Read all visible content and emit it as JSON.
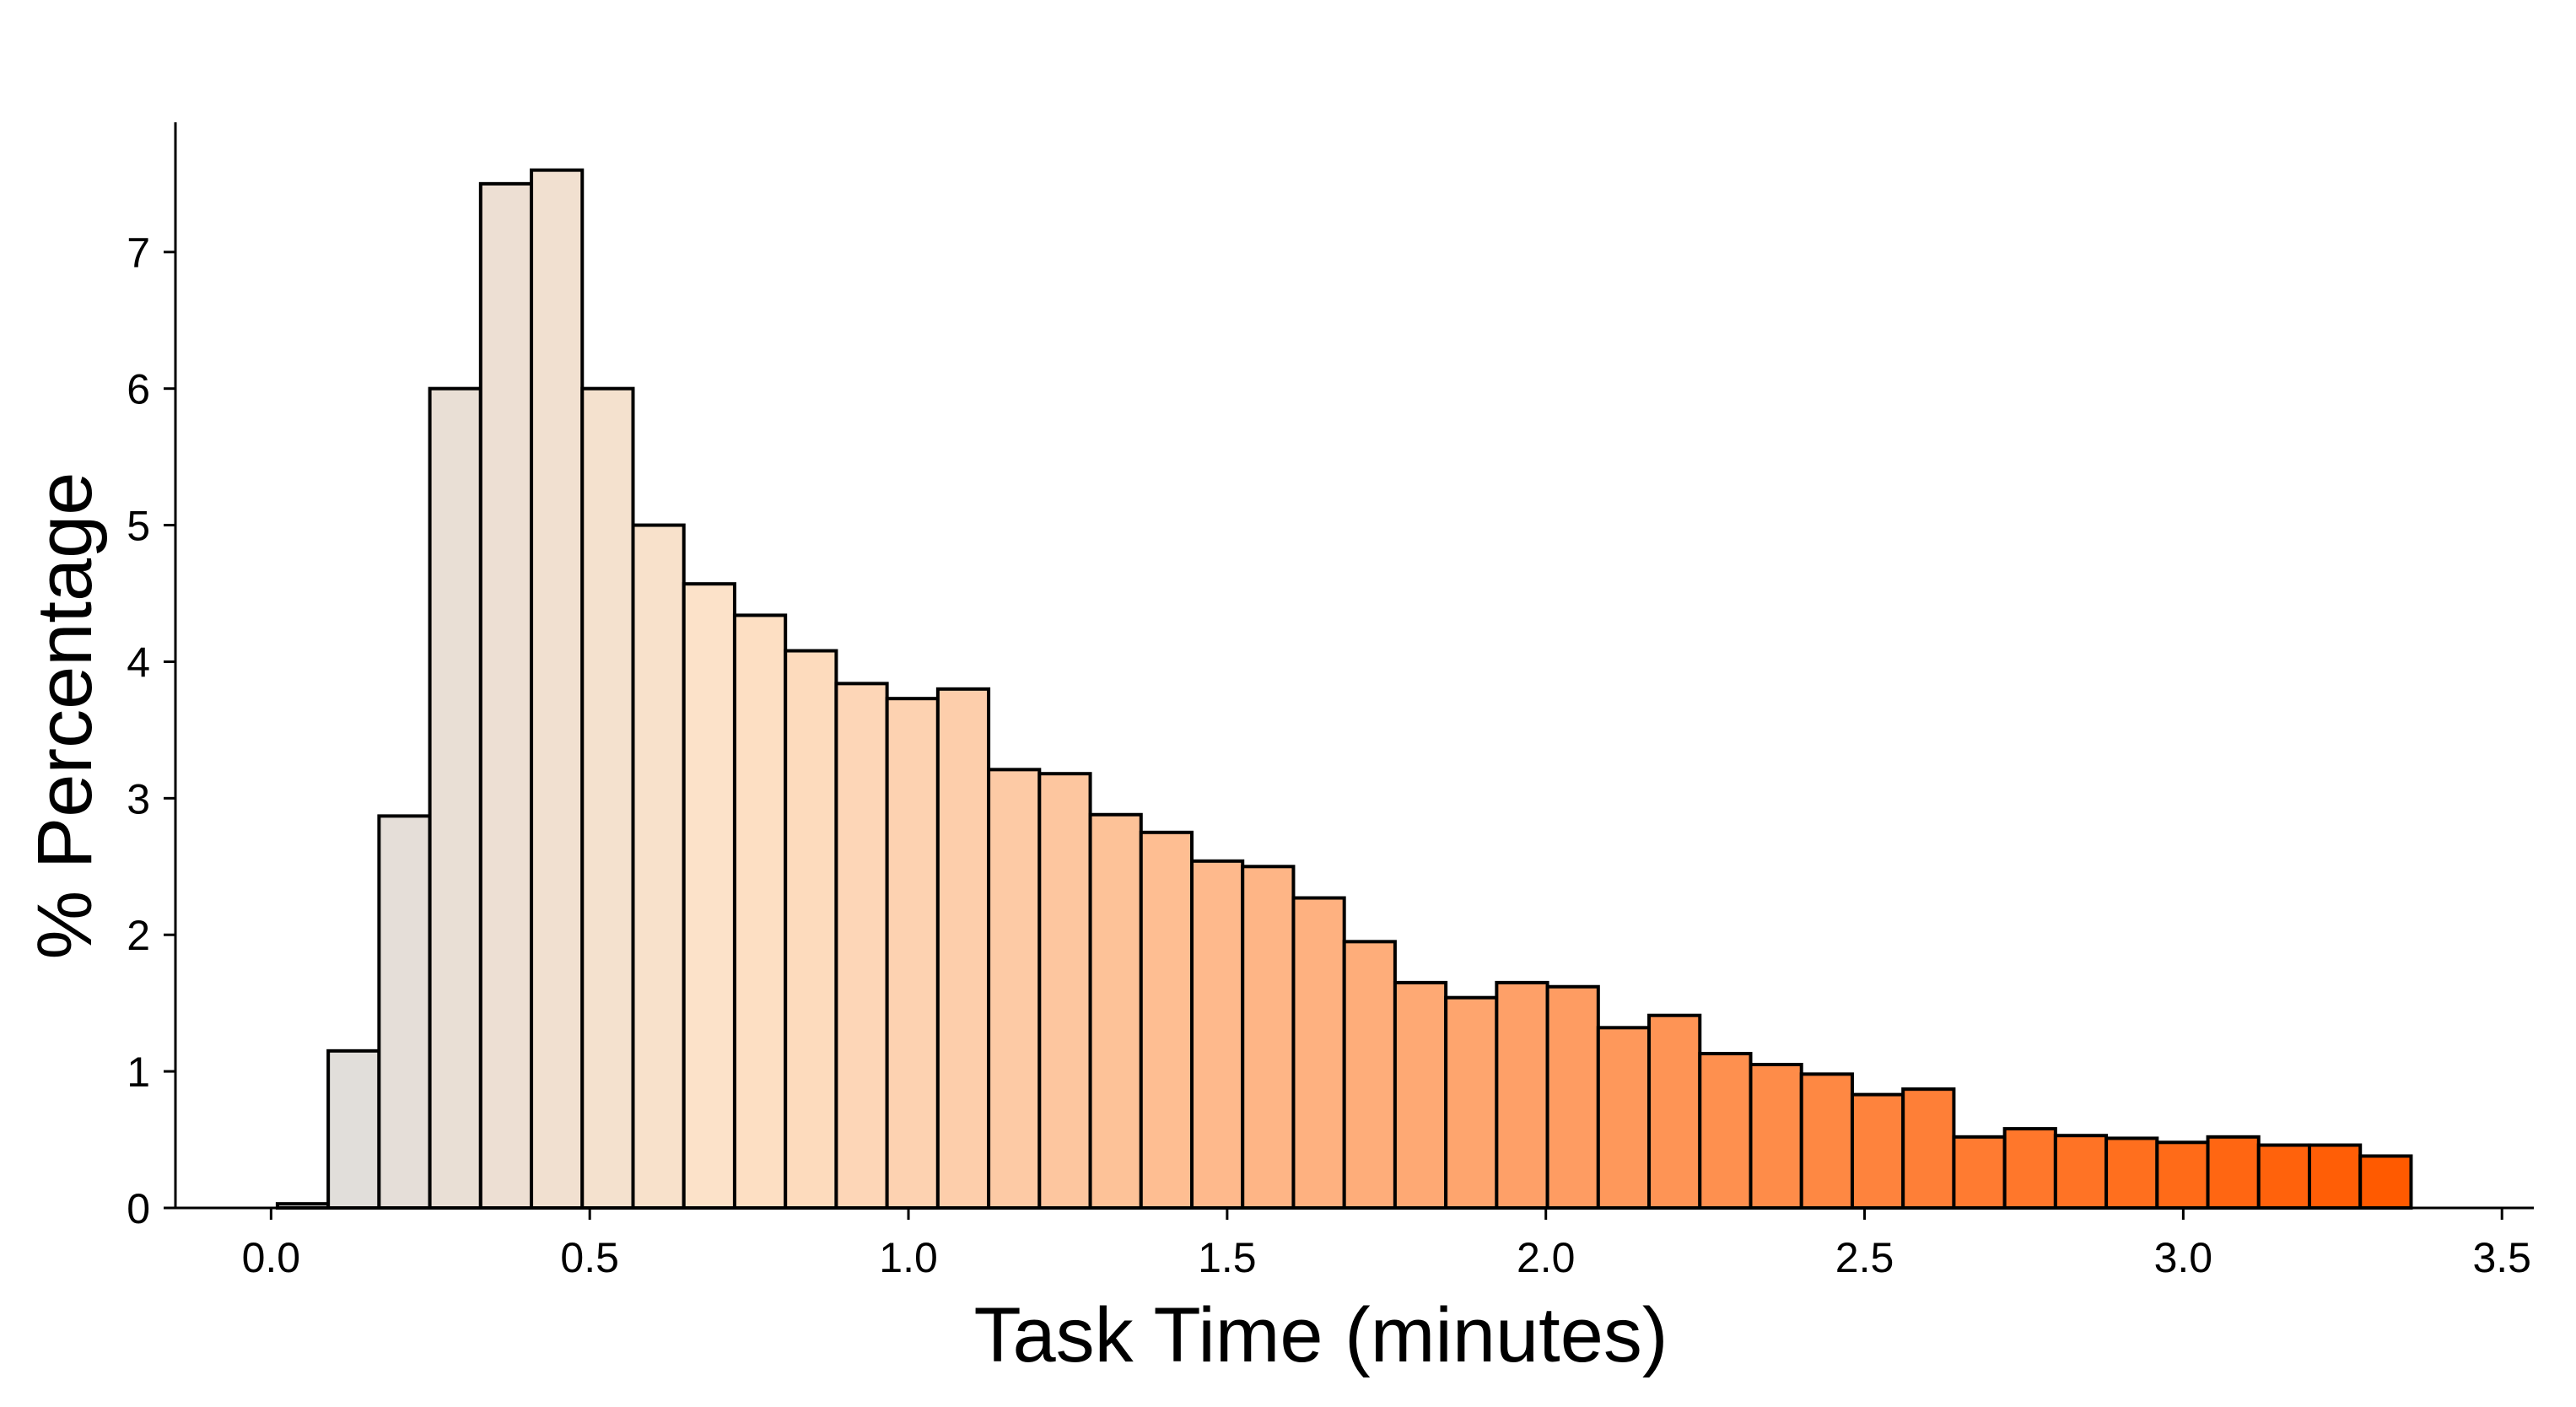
{
  "chart_data": {
    "type": "bar",
    "subtype": "histogram",
    "xlabel": "Task Time (minutes)",
    "ylabel": "% Percentage",
    "xlim": [
      -0.15,
      3.55
    ],
    "ylim": [
      0,
      7.95
    ],
    "x_ticks": [
      0.0,
      0.5,
      1.0,
      1.5,
      2.0,
      2.5,
      3.0,
      3.5
    ],
    "x_tick_labels": [
      "0.0",
      "0.5",
      "1.0",
      "1.5",
      "2.0",
      "2.5",
      "3.0",
      "3.5"
    ],
    "y_ticks": [
      0,
      1,
      2,
      3,
      4,
      5,
      6,
      7
    ],
    "y_tick_labels": [
      "0",
      "1",
      "2",
      "3",
      "4",
      "5",
      "6",
      "7"
    ],
    "bin_start": 0.01,
    "bin_width": 0.0797,
    "values": [
      0.03,
      1.15,
      2.87,
      6.0,
      7.5,
      7.6,
      6.0,
      5.0,
      4.57,
      4.34,
      4.08,
      3.84,
      3.73,
      3.8,
      3.21,
      3.18,
      2.88,
      2.75,
      2.54,
      2.5,
      2.27,
      1.95,
      1.65,
      1.54,
      1.65,
      1.62,
      1.32,
      1.41,
      1.13,
      1.05,
      0.98,
      0.83,
      0.87,
      0.52,
      0.58,
      0.53,
      0.51,
      0.48,
      0.52,
      0.46,
      0.46,
      0.38
    ],
    "color_start": "#dddddd",
    "color_mid": "#fde2c8",
    "color_end": "#ff5a00",
    "grid": false,
    "legend": "none"
  }
}
